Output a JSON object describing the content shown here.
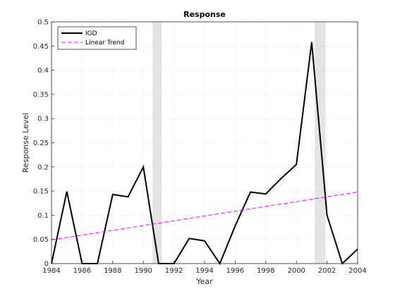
{
  "chart_data": {
    "type": "line",
    "title": "Response",
    "xlabel": "Year",
    "ylabel": "Response Level",
    "xlim": [
      1984,
      2004
    ],
    "ylim": [
      0,
      0.5
    ],
    "xticks": [
      "1984",
      "1986",
      "1988",
      "1990",
      "1992",
      "1994",
      "1996",
      "1998",
      "2000",
      "2002",
      "2004"
    ],
    "yticks": [
      "0",
      "0.05",
      "0.1",
      "0.15",
      "0.2",
      "0.25",
      "0.3",
      "0.35",
      "0.4",
      "0.45",
      "0.5"
    ],
    "grid": true,
    "legend_position": "top-left",
    "shaded_periods": [
      {
        "start": 1990.6,
        "end": 1991.2
      },
      {
        "start": 2001.2,
        "end": 2001.9
      }
    ],
    "series": [
      {
        "name": "IGD",
        "style": "solid",
        "color": "#000000",
        "x": [
          1984,
          1985,
          1986,
          1987,
          1988,
          1989,
          1990,
          1991,
          1992,
          1993,
          1994,
          1995,
          1996,
          1997,
          1998,
          1999,
          2000,
          2001,
          2002,
          2003,
          2004
        ],
        "y": [
          0.0,
          0.149,
          0.0,
          0.0,
          0.143,
          0.138,
          0.2,
          0.0,
          0.0,
          0.052,
          0.047,
          0.0,
          0.078,
          0.148,
          0.144,
          0.176,
          0.205,
          0.458,
          0.1,
          0.0,
          0.03
        ]
      },
      {
        "name": "Linear Trend",
        "style": "dashed",
        "color": "#ff00ff",
        "x": [
          1984,
          2004
        ],
        "y": [
          0.049,
          0.148
        ]
      }
    ]
  }
}
